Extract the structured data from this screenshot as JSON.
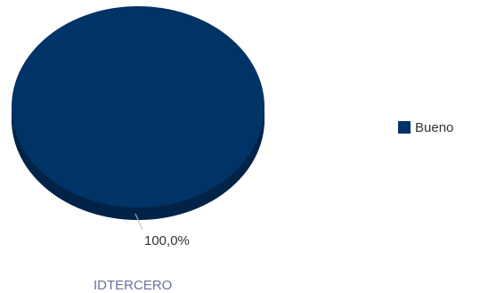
{
  "chart_data": {
    "type": "pie",
    "style": "3d",
    "categories": [
      "Bueno"
    ],
    "values": [
      100.0
    ],
    "data_labels": [
      "100,0%"
    ],
    "colors": [
      "#003366"
    ],
    "legend": {
      "placement": "right",
      "entries": [
        "Bueno"
      ]
    },
    "xlabel": "IDTERCERO"
  }
}
